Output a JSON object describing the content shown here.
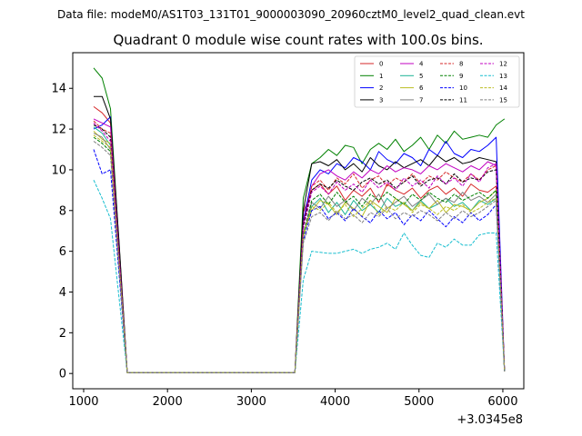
{
  "suptitle": "Data file: modeM0/AS1T03_131T01_9000003090_20960cztM0_level2_quad_clean.evt",
  "chart_data": {
    "type": "line",
    "title": "Quadrant 0 module wise count rates with 100.0s bins.",
    "xlabel": "",
    "ylabel": "",
    "x_offset_label": "+3.0345e8",
    "xlim": [
      870,
      6250
    ],
    "ylim": [
      -0.75,
      15.75
    ],
    "xticks": [
      1000,
      2000,
      3000,
      4000,
      5000,
      6000
    ],
    "yticks": [
      0,
      2,
      4,
      6,
      8,
      10,
      12,
      14
    ],
    "x": [
      1120,
      1220,
      1320,
      1420,
      1520,
      1620,
      1720,
      1820,
      1920,
      2020,
      2120,
      2220,
      2320,
      2420,
      2520,
      2620,
      2720,
      2820,
      2920,
      3020,
      3120,
      3220,
      3320,
      3420,
      3520,
      3620,
      3720,
      3820,
      3920,
      4020,
      4120,
      4220,
      4320,
      4420,
      4520,
      4620,
      4720,
      4820,
      4920,
      5020,
      5120,
      5220,
      5320,
      5420,
      5520,
      5620,
      5720,
      5820,
      5920,
      6020
    ],
    "legend": {
      "placement": "top-right",
      "columns": 4
    },
    "series": [
      {
        "name": "0",
        "color": "#d62728",
        "dash": "solid",
        "values": [
          13.1,
          12.8,
          12.3,
          6.2,
          0.05,
          0.05,
          0.05,
          0.05,
          0.05,
          0.05,
          0.05,
          0.05,
          0.05,
          0.05,
          0.05,
          0.05,
          0.05,
          0.05,
          0.05,
          0.05,
          0.05,
          0.05,
          0.05,
          0.05,
          0.05,
          7.9,
          9.0,
          9.3,
          8.8,
          9.2,
          8.5,
          9.0,
          8.7,
          9.1,
          8.4,
          9.3,
          9.0,
          8.8,
          9.1,
          8.6,
          9.0,
          9.2,
          8.8,
          9.1,
          8.7,
          9.3,
          9.0,
          8.9,
          9.2,
          0.1
        ]
      },
      {
        "name": "1",
        "color": "#008000",
        "dash": "solid",
        "values": [
          15.0,
          14.5,
          13.0,
          6.5,
          0.05,
          0.05,
          0.05,
          0.05,
          0.05,
          0.05,
          0.05,
          0.05,
          0.05,
          0.05,
          0.05,
          0.05,
          0.05,
          0.05,
          0.05,
          0.05,
          0.05,
          0.05,
          0.05,
          0.05,
          0.05,
          8.6,
          10.3,
          10.6,
          11.0,
          10.7,
          11.2,
          11.1,
          10.3,
          11.0,
          11.3,
          11.0,
          11.5,
          10.9,
          11.2,
          11.6,
          11.0,
          11.7,
          11.3,
          11.9,
          11.5,
          11.6,
          11.7,
          11.6,
          12.2,
          12.5
        ]
      },
      {
        "name": "2",
        "color": "#0000ff",
        "dash": "solid",
        "values": [
          12.0,
          12.2,
          12.6,
          6.1,
          0.05,
          0.05,
          0.05,
          0.05,
          0.05,
          0.05,
          0.05,
          0.05,
          0.05,
          0.05,
          0.05,
          0.05,
          0.05,
          0.05,
          0.05,
          0.05,
          0.05,
          0.05,
          0.05,
          0.05,
          0.05,
          7.5,
          9.5,
          10.0,
          9.8,
          10.3,
          10.1,
          10.6,
          10.4,
          10.0,
          10.9,
          10.5,
          10.3,
          10.8,
          10.6,
          10.2,
          11.0,
          10.7,
          11.4,
          10.8,
          10.6,
          11.0,
          10.9,
          11.2,
          11.6,
          0.1
        ]
      },
      {
        "name": "3",
        "color": "#000000",
        "dash": "solid",
        "values": [
          13.6,
          13.6,
          12.5,
          6.6,
          0.05,
          0.05,
          0.05,
          0.05,
          0.05,
          0.05,
          0.05,
          0.05,
          0.05,
          0.05,
          0.05,
          0.05,
          0.05,
          0.05,
          0.05,
          0.05,
          0.05,
          0.05,
          0.05,
          0.05,
          0.05,
          8.0,
          10.3,
          10.4,
          10.2,
          10.5,
          10.0,
          10.3,
          9.9,
          10.6,
          10.2,
          10.0,
          10.4,
          10.1,
          10.3,
          10.5,
          10.2,
          10.7,
          10.4,
          10.6,
          10.3,
          10.4,
          10.6,
          10.5,
          10.4,
          0.1
        ]
      },
      {
        "name": "4",
        "color": "#c000c0",
        "dash": "solid",
        "values": [
          12.5,
          12.3,
          12.1,
          6.0,
          0.05,
          0.05,
          0.05,
          0.05,
          0.05,
          0.05,
          0.05,
          0.05,
          0.05,
          0.05,
          0.05,
          0.05,
          0.05,
          0.05,
          0.05,
          0.05,
          0.05,
          0.05,
          0.05,
          0.05,
          0.05,
          7.4,
          9.2,
          9.8,
          10.0,
          9.7,
          9.5,
          9.9,
          9.6,
          10.0,
          9.8,
          10.2,
          9.9,
          10.1,
          10.0,
          9.8,
          10.2,
          10.0,
          10.3,
          10.1,
          9.9,
          10.2,
          10.0,
          10.4,
          10.2,
          0.1
        ]
      },
      {
        "name": "5",
        "color": "#1ab394",
        "dash": "solid",
        "values": [
          12.1,
          11.8,
          11.2,
          5.5,
          0.05,
          0.05,
          0.05,
          0.05,
          0.05,
          0.05,
          0.05,
          0.05,
          0.05,
          0.05,
          0.05,
          0.05,
          0.05,
          0.05,
          0.05,
          0.05,
          0.05,
          0.05,
          0.05,
          0.05,
          0.05,
          6.8,
          8.2,
          8.6,
          7.9,
          8.4,
          7.8,
          8.5,
          8.0,
          8.3,
          7.9,
          8.6,
          8.2,
          8.4,
          8.0,
          8.5,
          8.1,
          8.3,
          8.6,
          8.2,
          8.4,
          8.0,
          8.5,
          8.3,
          8.6,
          0.1
        ]
      },
      {
        "name": "6",
        "color": "#bcbd22",
        "dash": "solid",
        "values": [
          11.9,
          11.5,
          11.3,
          5.6,
          0.05,
          0.05,
          0.05,
          0.05,
          0.05,
          0.05,
          0.05,
          0.05,
          0.05,
          0.05,
          0.05,
          0.05,
          0.05,
          0.05,
          0.05,
          0.05,
          0.05,
          0.05,
          0.05,
          0.05,
          0.05,
          6.9,
          8.0,
          8.5,
          8.3,
          7.8,
          8.4,
          8.1,
          7.7,
          8.5,
          8.2,
          7.9,
          8.6,
          8.3,
          8.0,
          8.4,
          8.1,
          8.5,
          7.9,
          8.3,
          8.2,
          8.0,
          8.4,
          8.6,
          9.0,
          0.1
        ]
      },
      {
        "name": "7",
        "color": "#808080",
        "dash": "solid",
        "values": [
          11.8,
          11.6,
          11.0,
          5.4,
          0.05,
          0.05,
          0.05,
          0.05,
          0.05,
          0.05,
          0.05,
          0.05,
          0.05,
          0.05,
          0.05,
          0.05,
          0.05,
          0.05,
          0.05,
          0.05,
          0.05,
          0.05,
          0.05,
          0.05,
          0.05,
          6.7,
          8.4,
          8.1,
          8.7,
          8.2,
          8.5,
          8.0,
          8.6,
          8.3,
          8.8,
          8.1,
          8.4,
          8.7,
          8.2,
          8.5,
          8.8,
          8.3,
          8.6,
          8.4,
          8.9,
          8.5,
          8.7,
          8.4,
          8.8,
          0.1
        ]
      },
      {
        "name": "8",
        "color": "#d62728",
        "dash": "dashed",
        "values": [
          12.4,
          12.0,
          11.8,
          5.8,
          0.05,
          0.05,
          0.05,
          0.05,
          0.05,
          0.05,
          0.05,
          0.05,
          0.05,
          0.05,
          0.05,
          0.05,
          0.05,
          0.05,
          0.05,
          0.05,
          0.05,
          0.05,
          0.05,
          0.05,
          0.05,
          7.2,
          9.2,
          9.5,
          9.0,
          9.6,
          9.3,
          9.8,
          9.1,
          9.5,
          9.7,
          9.2,
          9.6,
          9.4,
          9.8,
          9.3,
          9.7,
          9.5,
          9.9,
          9.6,
          9.4,
          9.8,
          9.5,
          10.0,
          10.2,
          0.1
        ]
      },
      {
        "name": "9",
        "color": "#008000",
        "dash": "dashed",
        "values": [
          11.6,
          11.3,
          10.9,
          5.4,
          0.05,
          0.05,
          0.05,
          0.05,
          0.05,
          0.05,
          0.05,
          0.05,
          0.05,
          0.05,
          0.05,
          0.05,
          0.05,
          0.05,
          0.05,
          0.05,
          0.05,
          0.05,
          0.05,
          0.05,
          0.05,
          6.8,
          8.5,
          8.8,
          8.3,
          8.9,
          8.4,
          8.7,
          8.2,
          8.8,
          8.5,
          8.9,
          8.6,
          8.3,
          8.8,
          8.5,
          8.9,
          8.6,
          8.4,
          8.8,
          8.5,
          8.7,
          8.9,
          8.6,
          9.0,
          0.1
        ]
      },
      {
        "name": "10",
        "color": "#0000ff",
        "dash": "dashed",
        "values": [
          11.0,
          9.8,
          10.0,
          5.0,
          0.05,
          0.05,
          0.05,
          0.05,
          0.05,
          0.05,
          0.05,
          0.05,
          0.05,
          0.05,
          0.05,
          0.05,
          0.05,
          0.05,
          0.05,
          0.05,
          0.05,
          0.05,
          0.05,
          0.05,
          0.05,
          6.5,
          8.0,
          8.2,
          7.6,
          7.9,
          7.5,
          8.1,
          7.7,
          7.4,
          8.0,
          7.6,
          7.9,
          7.3,
          7.8,
          7.5,
          8.0,
          7.6,
          7.2,
          7.7,
          7.4,
          7.9,
          7.5,
          7.8,
          8.3,
          0.1
        ]
      },
      {
        "name": "11",
        "color": "#000000",
        "dash": "dashed",
        "values": [
          12.2,
          12.0,
          11.6,
          5.8,
          0.05,
          0.05,
          0.05,
          0.05,
          0.05,
          0.05,
          0.05,
          0.05,
          0.05,
          0.05,
          0.05,
          0.05,
          0.05,
          0.05,
          0.05,
          0.05,
          0.05,
          0.05,
          0.05,
          0.05,
          0.05,
          7.3,
          9.0,
          9.3,
          9.1,
          9.5,
          9.2,
          9.0,
          9.4,
          9.6,
          9.3,
          9.5,
          9.1,
          9.4,
          9.7,
          9.2,
          9.5,
          9.6,
          9.3,
          9.8,
          9.4,
          9.6,
          9.5,
          9.9,
          10.0,
          0.1
        ]
      },
      {
        "name": "12",
        "color": "#c000c0",
        "dash": "dashed",
        "values": [
          12.3,
          11.9,
          11.4,
          5.7,
          0.05,
          0.05,
          0.05,
          0.05,
          0.05,
          0.05,
          0.05,
          0.05,
          0.05,
          0.05,
          0.05,
          0.05,
          0.05,
          0.05,
          0.05,
          0.05,
          0.05,
          0.05,
          0.05,
          0.05,
          0.05,
          7.1,
          8.9,
          9.2,
          8.8,
          9.4,
          9.0,
          9.3,
          8.9,
          9.5,
          9.1,
          9.4,
          9.0,
          9.6,
          9.2,
          9.5,
          9.1,
          9.7,
          9.3,
          9.6,
          9.2,
          9.8,
          9.4,
          10.1,
          10.3,
          0.1
        ]
      },
      {
        "name": "13",
        "color": "#17becf",
        "dash": "dashed",
        "values": [
          9.5,
          8.6,
          7.6,
          3.8,
          0.05,
          0.05,
          0.05,
          0.05,
          0.05,
          0.05,
          0.05,
          0.05,
          0.05,
          0.05,
          0.05,
          0.05,
          0.05,
          0.05,
          0.05,
          0.05,
          0.05,
          0.05,
          0.05,
          0.05,
          0.05,
          4.6,
          6.0,
          5.95,
          5.9,
          5.9,
          6.0,
          6.1,
          5.9,
          6.1,
          6.2,
          6.4,
          6.1,
          6.9,
          6.3,
          5.8,
          5.7,
          6.4,
          6.2,
          6.6,
          6.3,
          6.3,
          6.8,
          6.9,
          6.9,
          0.1
        ]
      },
      {
        "name": "14",
        "color": "#bcbd22",
        "dash": "dashed",
        "values": [
          11.7,
          11.4,
          11.1,
          5.5,
          0.05,
          0.05,
          0.05,
          0.05,
          0.05,
          0.05,
          0.05,
          0.05,
          0.05,
          0.05,
          0.05,
          0.05,
          0.05,
          0.05,
          0.05,
          0.05,
          0.05,
          0.05,
          0.05,
          0.05,
          0.05,
          6.7,
          8.2,
          8.0,
          8.4,
          7.9,
          8.3,
          7.7,
          8.1,
          8.5,
          7.8,
          8.2,
          8.0,
          8.4,
          7.9,
          8.3,
          8.1,
          7.8,
          8.2,
          8.0,
          8.3,
          7.9,
          8.1,
          8.4,
          8.6,
          0.1
        ]
      },
      {
        "name": "15",
        "color": "#808080",
        "dash": "dashed",
        "values": [
          11.4,
          11.1,
          10.7,
          5.3,
          0.05,
          0.05,
          0.05,
          0.05,
          0.05,
          0.05,
          0.05,
          0.05,
          0.05,
          0.05,
          0.05,
          0.05,
          0.05,
          0.05,
          0.05,
          0.05,
          0.05,
          0.05,
          0.05,
          0.05,
          0.05,
          6.4,
          7.7,
          7.9,
          7.5,
          8.0,
          7.6,
          7.8,
          7.4,
          7.9,
          7.7,
          8.1,
          7.6,
          7.9,
          7.7,
          8.0,
          7.8,
          7.5,
          7.9,
          7.6,
          8.0,
          7.7,
          7.9,
          8.2,
          8.5,
          0.1
        ]
      }
    ]
  }
}
